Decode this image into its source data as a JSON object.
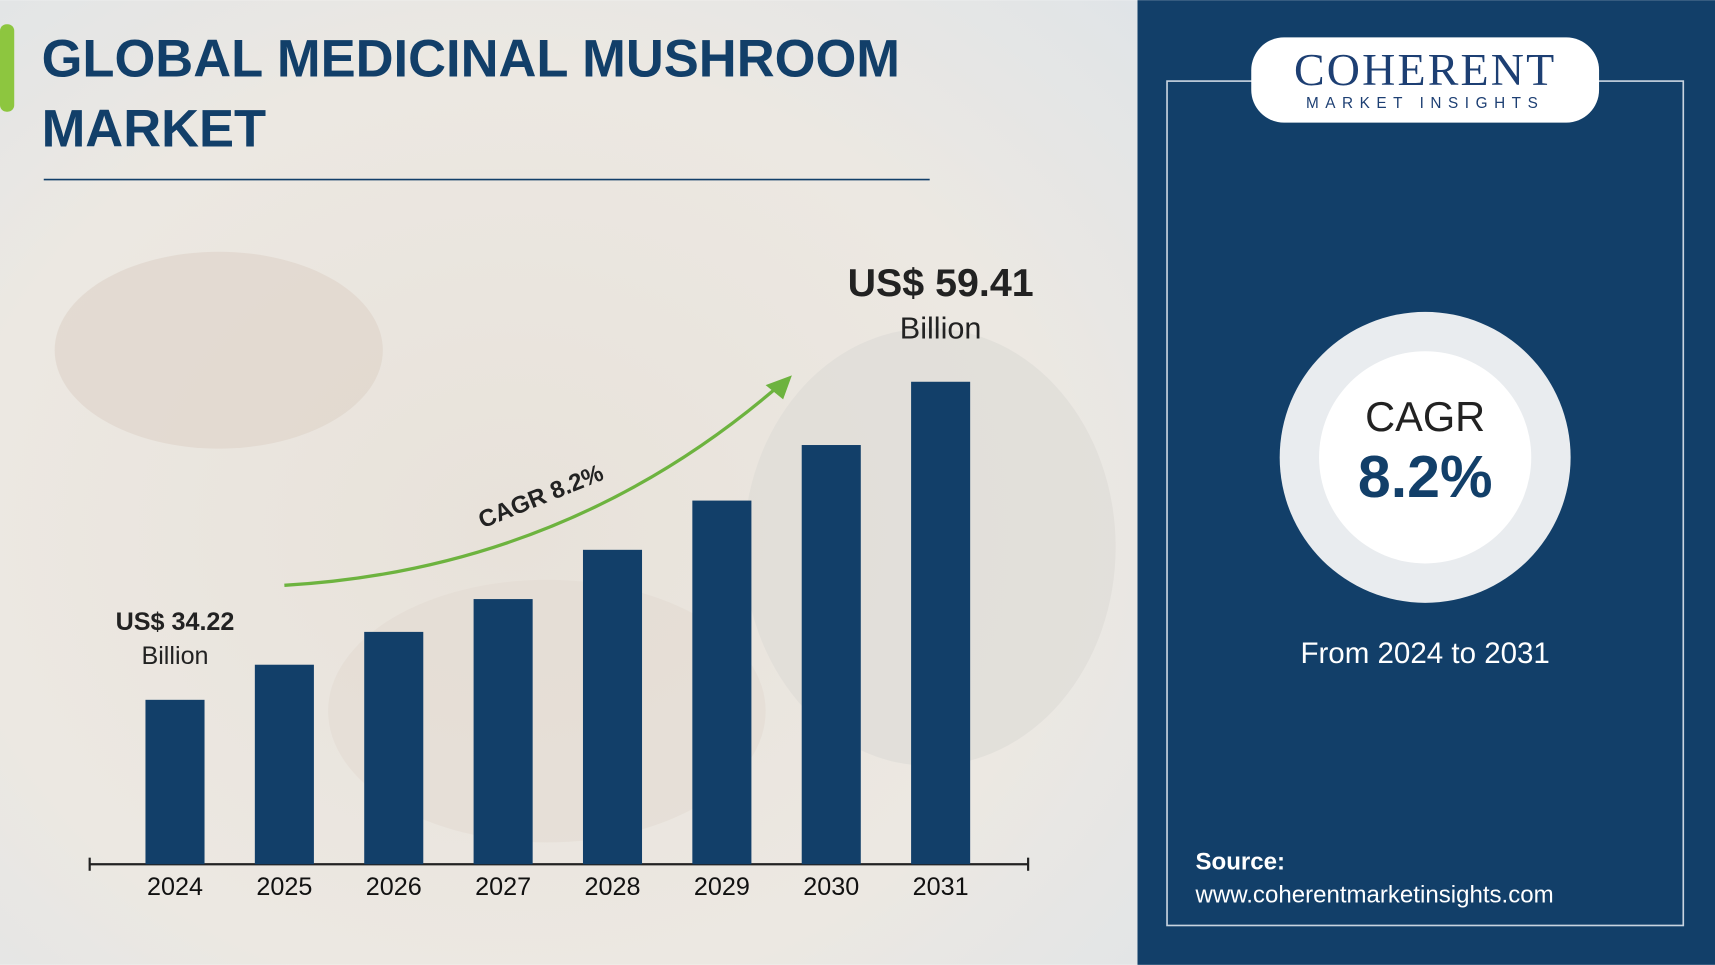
{
  "chart_data": {
    "type": "bar",
    "title": [
      "GLOBAL MEDICINAL MUSHROOM",
      "MARKET"
    ],
    "categories": [
      "2024",
      "2025",
      "2026",
      "2027",
      "2028",
      "2029",
      "2030",
      "2031"
    ],
    "values": [
      34.22,
      37.0,
      39.6,
      42.2,
      46.1,
      50.0,
      54.4,
      59.41
    ],
    "value_labels": [
      "US$ 34.22",
      null,
      null,
      null,
      null,
      null,
      null,
      "US$ 59.41"
    ],
    "value_unit": "Billion",
    "annotation": "CAGR 8.2%",
    "color": "#123f69",
    "ylim": [
      21.2,
      62
    ]
  },
  "sidebar": {
    "logo": {
      "name": "COHERENT",
      "tagline": "MARKET INSIGHTS"
    },
    "cagr_label": "CAGR",
    "cagr_value": "8.2%",
    "period": "From 2024 to 2031",
    "source_label": "Source:",
    "source_url": "www.coherentmarketinsights.com"
  }
}
